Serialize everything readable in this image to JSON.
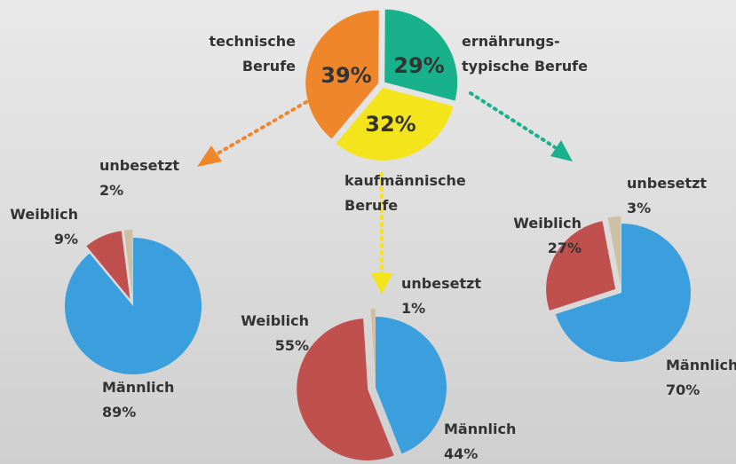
{
  "chart_data": [
    {
      "type": "pie",
      "categories": [
        "technische\nBerufe",
        "ernährungs-\ntypische Berufe",
        "kaufmännische\nBerufe"
      ],
      "values": [
        39,
        29,
        32
      ],
      "value_labels": [
        "39%",
        "29%",
        "32%"
      ],
      "colors": [
        "#f0862c",
        "#19b08c",
        "#f4e41c"
      ]
    },
    {
      "type": "pie",
      "categories": [
        "Männlich",
        "Weiblich",
        "unbesetzt"
      ],
      "values": [
        89,
        9,
        2
      ],
      "value_labels": [
        "89%",
        "9%",
        "2%"
      ],
      "colors": [
        "#3a9fdc",
        "#c0504d",
        "#cdbfa3"
      ]
    },
    {
      "type": "pie",
      "categories": [
        "Männlich",
        "Weiblich",
        "unbesetzt"
      ],
      "values": [
        44,
        55,
        1
      ],
      "value_labels": [
        "44%",
        "55%",
        "1%"
      ],
      "colors": [
        "#3a9fdc",
        "#c0504d",
        "#cdbfa3"
      ]
    },
    {
      "type": "pie",
      "categories": [
        "Männlich",
        "Weiblich",
        "unbesetzt"
      ],
      "values": [
        70,
        27,
        3
      ],
      "value_labels": [
        "70%",
        "27%",
        "3%"
      ],
      "colors": [
        "#3a9fdc",
        "#c0504d",
        "#cdbfa3"
      ]
    }
  ]
}
